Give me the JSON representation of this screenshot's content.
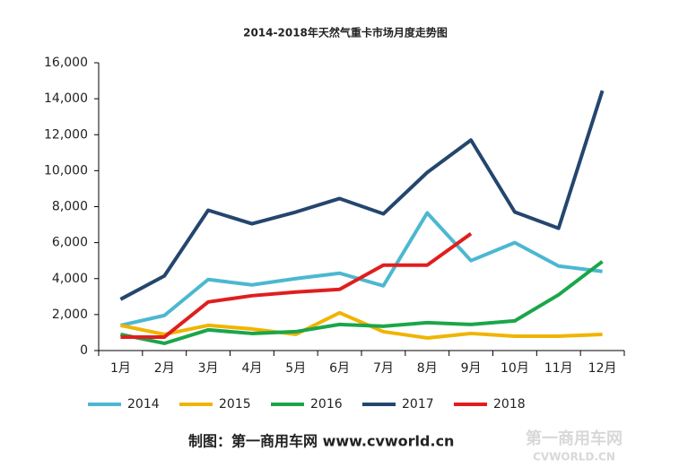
{
  "chart_data": {
    "type": "line",
    "title": "2014-2018年天然气重卡市场月度走势图",
    "categories": [
      "1月",
      "2月",
      "3月",
      "4月",
      "5月",
      "6月",
      "7月",
      "8月",
      "9月",
      "10月",
      "11月",
      "12月"
    ],
    "series": [
      {
        "name": "2014",
        "color": "#4bb8d0",
        "values": [
          1400,
          1950,
          3950,
          3650,
          4000,
          4300,
          3600,
          7650,
          5000,
          6000,
          4700,
          4400
        ]
      },
      {
        "name": "2015",
        "color": "#f0b400",
        "values": [
          1400,
          900,
          1400,
          1200,
          900,
          2100,
          1050,
          700,
          950,
          800,
          800,
          900
        ]
      },
      {
        "name": "2016",
        "color": "#1aa64a",
        "values": [
          900,
          400,
          1150,
          950,
          1050,
          1450,
          1350,
          1550,
          1450,
          1650,
          3100,
          4950
        ]
      },
      {
        "name": "2017",
        "color": "#24466e",
        "values": [
          2850,
          4150,
          7800,
          7050,
          7700,
          8450,
          7600,
          9900,
          11700,
          7700,
          6800,
          14450
        ]
      },
      {
        "name": "2018",
        "color": "#e01e1e",
        "values": [
          750,
          750,
          2700,
          3050,
          3250,
          3400,
          4750,
          4750,
          6500,
          null,
          null,
          null
        ]
      }
    ],
    "ylim": [
      0,
      16000
    ],
    "yticks": [
      0,
      {
        "value": 2000,
        "label": "2,000"
      },
      {
        "value": 4000,
        "label": "4,000"
      },
      {
        "value": 6000,
        "label": "6,000"
      },
      {
        "value": 8000,
        "label": "8,000"
      },
      {
        "value": 10000,
        "label": "10,000"
      },
      {
        "value": 12000,
        "label": "12,000"
      },
      {
        "value": 14000,
        "label": "14,000"
      },
      {
        "value": 16000,
        "label": "16,000"
      }
    ],
    "grid": false,
    "legend": "bottom",
    "footer": "制图：第一商用车网 www.cvworld.cn",
    "watermark": [
      "第一商用车网",
      "CVWORLD.CN"
    ]
  }
}
